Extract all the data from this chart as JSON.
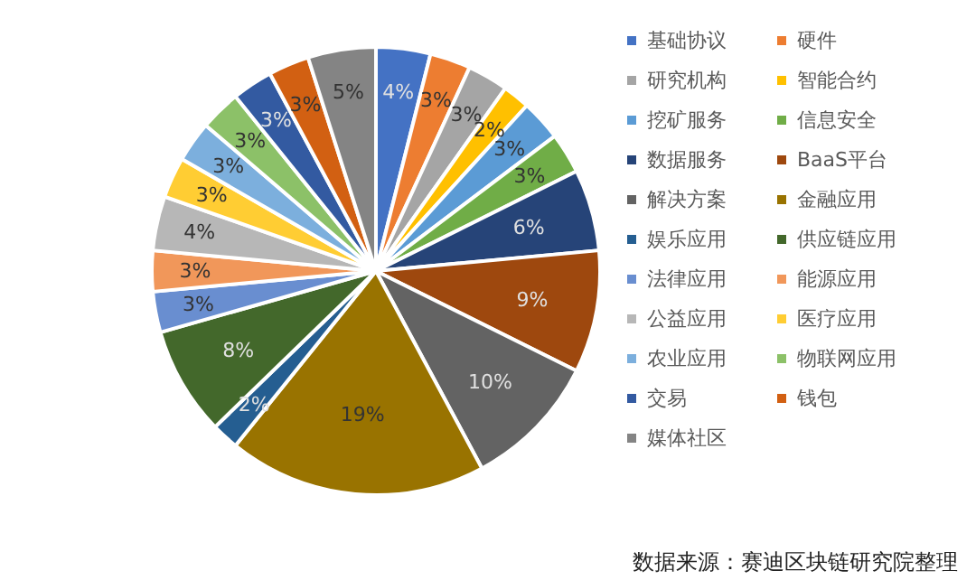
{
  "chart_data": {
    "type": "pie",
    "categories": [
      "基础协议",
      "硬件",
      "研究机构",
      "智能合约",
      "挖矿服务",
      "信息安全",
      "数据服务",
      "BaaS平台",
      "解决方案",
      "金融应用",
      "娱乐应用",
      "供应链应用",
      "法律应用",
      "能源应用",
      "公益应用",
      "医疗应用",
      "农业应用",
      "物联网应用",
      "交易",
      "钱包",
      "媒体社区"
    ],
    "values": [
      4,
      3,
      3,
      2,
      3,
      3,
      6,
      9,
      10,
      19,
      2,
      8,
      3,
      3,
      4,
      3,
      3,
      3,
      3,
      3,
      5
    ],
    "colors": [
      "#4472c4",
      "#ed7d31",
      "#a5a5a5",
      "#ffc000",
      "#5b9bd5",
      "#70ad47",
      "#264478",
      "#9e480e",
      "#636363",
      "#997300",
      "#255e91",
      "#43682b",
      "#698ed0",
      "#f1975a",
      "#b7b7b7",
      "#ffcd33",
      "#7cafdd",
      "#8cc168",
      "#335aa1",
      "#d26012",
      "#848484"
    ],
    "value_labels": [
      "4%",
      "3%",
      "3%",
      "2%",
      "3%",
      "3%",
      "6%",
      "9%",
      "10%",
      "19%",
      "2%",
      "8%",
      "3%",
      "3%",
      "4%",
      "3%",
      "3%",
      "3%",
      "3%",
      "3%",
      "5%"
    ],
    "legend": "right",
    "annotations": [
      "数据来源：赛迪区块链研究院整理"
    ]
  }
}
